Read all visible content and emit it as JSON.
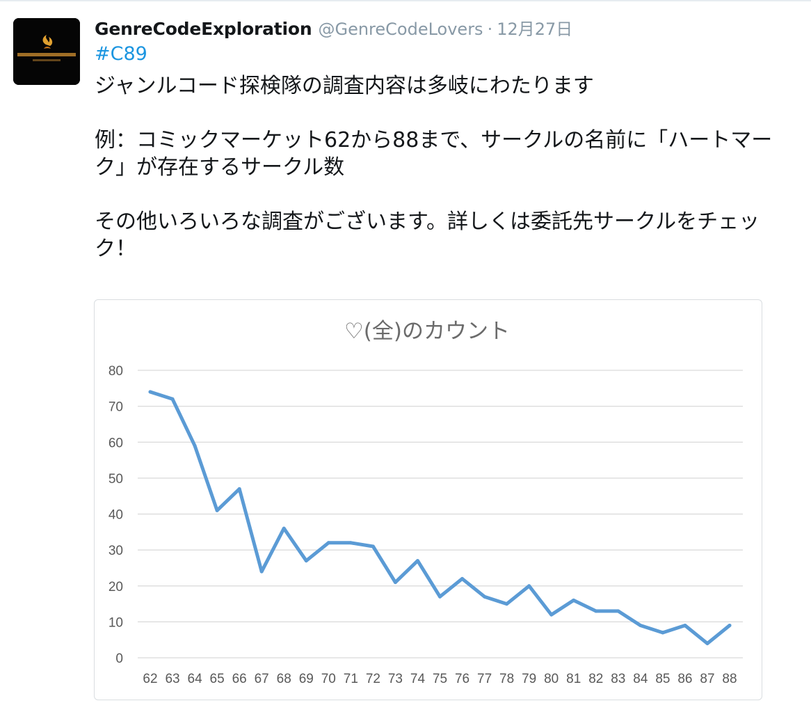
{
  "tweet": {
    "author": {
      "name": "GenreCodeExploration",
      "handle": "@GenreCodeLovers",
      "avatar_icon": "genre-code-logo"
    },
    "separator": "·",
    "date": "12月27日",
    "hashtag": "#C89",
    "text": {
      "line1": "ジャンルコード探検隊の調査内容は多岐にわたります",
      "line2": "例：コミックマーケット62から88まで、サークルの名前に「ハートマーク」が存在するサークル数",
      "line3": "その他いろいろな調査がございます。詳しくは委託先サークルをチェック！"
    }
  },
  "colors": {
    "link": "#1b95e0",
    "muted": "#8899a6",
    "series_line": "#5b9bd5",
    "gridline": "#d9d9d9"
  },
  "chart_data": {
    "type": "line",
    "title": "♡(全)のカウント",
    "xlabel": "",
    "ylabel": "",
    "categories": [
      "62",
      "63",
      "64",
      "65",
      "66",
      "67",
      "68",
      "69",
      "70",
      "71",
      "72",
      "73",
      "74",
      "75",
      "76",
      "77",
      "78",
      "79",
      "80",
      "81",
      "82",
      "83",
      "84",
      "85",
      "86",
      "87",
      "88"
    ],
    "series": [
      {
        "values": [
          74,
          72,
          59,
          41,
          47,
          24,
          36,
          27,
          32,
          32,
          31,
          21,
          27,
          17,
          22,
          17,
          15,
          20,
          12,
          16,
          13,
          13,
          9,
          7,
          9,
          4,
          9
        ]
      }
    ],
    "ylim": [
      0,
      80
    ],
    "yticks": [
      0,
      10,
      20,
      30,
      40,
      50,
      60,
      70,
      80
    ],
    "grid": true,
    "legend": "none"
  }
}
